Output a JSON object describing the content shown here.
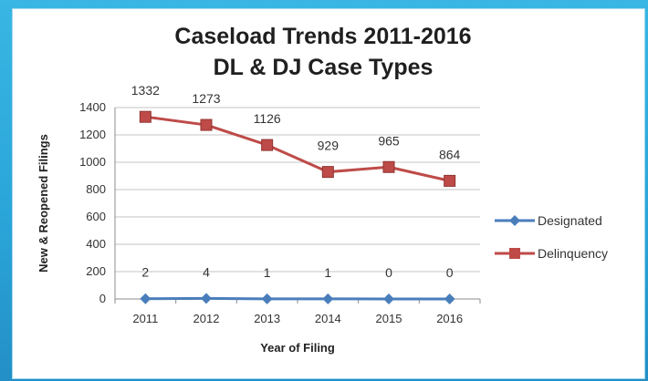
{
  "chart_data": {
    "type": "line",
    "title_lines": [
      "Caseload Trends 2011-2016",
      "DL & DJ Case Types"
    ],
    "xlabel": "Year of Filing",
    "ylabel": "New & Reopened Filings",
    "x": [
      "2011",
      "2012",
      "2013",
      "2014",
      "2015",
      "2016"
    ],
    "ylim": [
      0,
      1400
    ],
    "yticks": [
      0,
      200,
      400,
      600,
      800,
      1000,
      1200,
      1400
    ],
    "grid": true,
    "legend_position": "right",
    "series": [
      {
        "name": "Designated",
        "values": [
          2,
          4,
          1,
          1,
          0,
          0
        ],
        "color": "#4a7ebb",
        "marker": "diamond"
      },
      {
        "name": "Delinquency",
        "values": [
          1332,
          1273,
          1126,
          929,
          965,
          864
        ],
        "color": "#be4b48",
        "marker": "square"
      }
    ]
  }
}
